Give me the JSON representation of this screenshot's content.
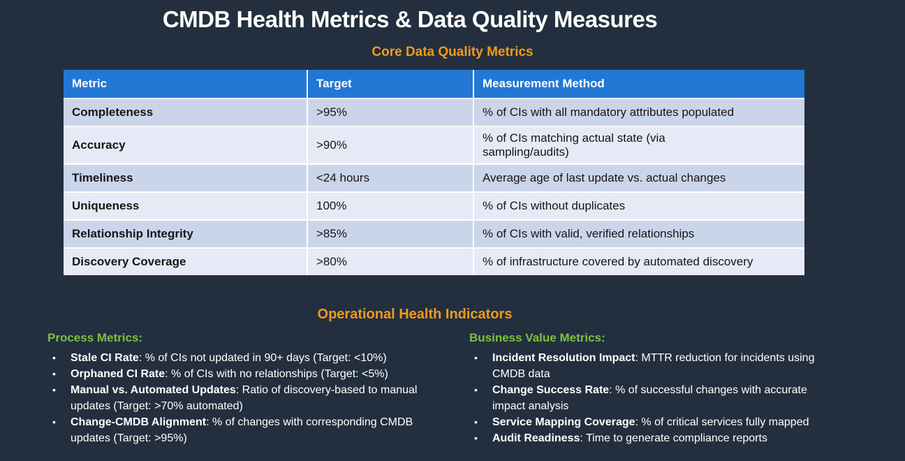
{
  "slide": {
    "title": "CMDB Health Metrics & Data Quality Measures",
    "core_heading": "Core Data Quality Metrics",
    "oper_heading": "Operational Health Indicators"
  },
  "table": {
    "headers": [
      "Metric",
      "Target",
      "Measurement Method"
    ],
    "rows": [
      {
        "metric": "Completeness",
        "target": ">95%",
        "method": "% of CIs with all mandatory attributes populated"
      },
      {
        "metric": "Accuracy",
        "target": ">90%",
        "method": "% of CIs matching actual state (via\nsampling/audits)"
      },
      {
        "metric": "Timeliness",
        "target": "<24 hours",
        "method": "Average age of last update vs. actual changes"
      },
      {
        "metric": "Uniqueness",
        "target": "100%",
        "method": "% of CIs without duplicates"
      },
      {
        "metric": "Relationship Integrity",
        "target": ">85%",
        "method": "% of CIs with valid, verified relationships"
      },
      {
        "metric": "Discovery Coverage",
        "target": ">80%",
        "method": "% of infrastructure covered by automated discovery"
      }
    ]
  },
  "lists": {
    "bullet_char": "•",
    "process": {
      "heading": "Process Metrics:",
      "items": [
        {
          "term": "Stale CI Rate",
          "desc": ": % of CIs not updated in 90+ days (Target: <10%)"
        },
        {
          "term": "Orphaned CI Rate",
          "desc": ": % of CIs with no relationships (Target: <5%)"
        },
        {
          "term": "Manual vs. Automated Updates",
          "desc": ": Ratio of discovery-based to manual updates (Target: >70% automated)"
        },
        {
          "term": "Change-CMDB Alignment",
          "desc": ": % of changes with corresponding CMDB updates (Target: >95%)"
        }
      ]
    },
    "business": {
      "heading": "Business Value Metrics:",
      "items": [
        {
          "term": "Incident Resolution Impact",
          "desc": ": MTTR reduction for incidents using CMDB data"
        },
        {
          "term": "Change Success Rate",
          "desc": ": % of successful changes with accurate impact analysis"
        },
        {
          "term": "Service Mapping Coverage",
          "desc": ": % of critical services fully mapped"
        },
        {
          "term": "Audit Readiness",
          "desc": ": Time to generate compliance reports"
        }
      ]
    }
  },
  "colors": {
    "background": "#232F3E",
    "table_header_blue": "#2277D4",
    "row_dark": "#CBD5EA",
    "row_light": "#E7EAF6",
    "accent_orange": "#F0991F",
    "accent_green": "#7CC142",
    "title_white": "#FFFFFF",
    "table_text": "#161616"
  }
}
